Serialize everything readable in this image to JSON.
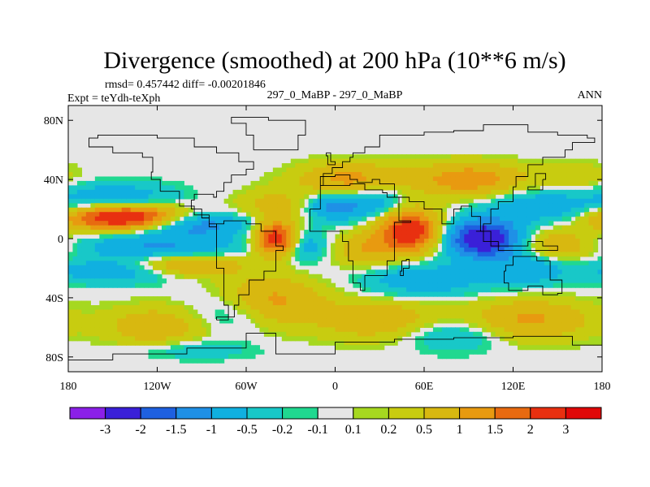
{
  "chart_data": {
    "type": "heatmap",
    "title": "Divergence (smoothed) at 200 hPa (10**6 m/s)",
    "stats_line": "rmsd= 0.457442 diff= -0.00201846",
    "experiment_label": "Expt = teYdh-teXph",
    "comparison_label": "297_0_MaBP - 297_0_MaBP",
    "season_label": "ANN",
    "x_range": [
      -180,
      180
    ],
    "y_range": [
      -90,
      90
    ],
    "x_ticks": [
      {
        "value": -180,
        "label": "180"
      },
      {
        "value": -120,
        "label": "120W"
      },
      {
        "value": -60,
        "label": "60W"
      },
      {
        "value": 0,
        "label": "0"
      },
      {
        "value": 60,
        "label": "60E"
      },
      {
        "value": 120,
        "label": "120E"
      },
      {
        "value": 180,
        "label": "180"
      }
    ],
    "y_ticks": [
      {
        "value": 80,
        "label": "80N"
      },
      {
        "value": 40,
        "label": "40N"
      },
      {
        "value": 0,
        "label": "0"
      },
      {
        "value": -40,
        "label": "40S"
      },
      {
        "value": -80,
        "label": "80S"
      }
    ],
    "levels": [
      -3,
      -2,
      -1.5,
      -1,
      -0.5,
      -0.2,
      -0.1,
      0.1,
      0.2,
      0.5,
      1,
      1.5,
      2,
      3
    ],
    "level_labels": [
      "-3",
      "-2",
      "-1.5",
      "-1",
      "-0.5",
      "-0.2",
      "-0.1",
      "0.1",
      "0.2",
      "0.5",
      "1",
      "1.5",
      "2",
      "3"
    ],
    "colors": [
      "#8b20e8",
      "#3a20d8",
      "#1e60e0",
      "#1f90e6",
      "#10b0e0",
      "#18c8c8",
      "#20d890",
      "#e6e6e6",
      "#a6d820",
      "#c8cc10",
      "#d8b810",
      "#e89a10",
      "#e86a10",
      "#e83010",
      "#e00808"
    ],
    "sources": [
      {
        "lon": -140,
        "lat": 14,
        "amp": 3.2,
        "sx": 28,
        "sy": 6
      },
      {
        "lon": -100,
        "lat": 10,
        "amp": -1.6,
        "sx": 30,
        "sy": 6
      },
      {
        "lon": -150,
        "lat": 28,
        "amp": -0.9,
        "sx": 30,
        "sy": 7
      },
      {
        "lon": -120,
        "lat": -5,
        "amp": -1.0,
        "sx": 40,
        "sy": 6
      },
      {
        "lon": -100,
        "lat": -18,
        "amp": 1.2,
        "sx": 25,
        "sy": 5
      },
      {
        "lon": -150,
        "lat": -22,
        "amp": -0.9,
        "sx": 30,
        "sy": 6
      },
      {
        "lon": -40,
        "lat": 0,
        "amp": 2.6,
        "sx": 10,
        "sy": 8
      },
      {
        "lon": -20,
        "lat": -5,
        "amp": -0.8,
        "sx": 10,
        "sy": 8
      },
      {
        "lon": -45,
        "lat": -42,
        "amp": 1.2,
        "sx": 25,
        "sy": 12
      },
      {
        "lon": -70,
        "lat": -50,
        "amp": -0.7,
        "sx": 20,
        "sy": 10
      },
      {
        "lon": 0,
        "lat": 22,
        "amp": -1.3,
        "sx": 15,
        "sy": 7
      },
      {
        "lon": -40,
        "lat": 22,
        "amp": 0.7,
        "sx": 20,
        "sy": 8
      },
      {
        "lon": 10,
        "lat": 40,
        "amp": 1.2,
        "sx": 25,
        "sy": 8
      },
      {
        "lon": 50,
        "lat": 5,
        "amp": 2.6,
        "sx": 15,
        "sy": 10
      },
      {
        "lon": 30,
        "lat": 25,
        "amp": -0.8,
        "sx": 12,
        "sy": 8
      },
      {
        "lon": 20,
        "lat": -8,
        "amp": 0.9,
        "sx": 15,
        "sy": 8
      },
      {
        "lon": 60,
        "lat": -28,
        "amp": -0.9,
        "sx": 30,
        "sy": 8
      },
      {
        "lon": 100,
        "lat": 0,
        "amp": -2.8,
        "sx": 18,
        "sy": 9
      },
      {
        "lon": 90,
        "lat": 40,
        "amp": 1.4,
        "sx": 25,
        "sy": 8
      },
      {
        "lon": 140,
        "lat": 22,
        "amp": -0.9,
        "sx": 25,
        "sy": 8
      },
      {
        "lon": 150,
        "lat": -5,
        "amp": 1.0,
        "sx": 20,
        "sy": 8
      },
      {
        "lon": 130,
        "lat": -20,
        "amp": -0.9,
        "sx": 20,
        "sy": 8
      },
      {
        "lon": 130,
        "lat": -55,
        "amp": 1.1,
        "sx": 30,
        "sy": 10
      },
      {
        "lon": 30,
        "lat": -55,
        "amp": 0.9,
        "sx": 30,
        "sy": 10
      },
      {
        "lon": -120,
        "lat": -60,
        "amp": 0.9,
        "sx": 25,
        "sy": 10
      },
      {
        "lon": -100,
        "lat": -75,
        "amp": -0.5,
        "sx": 30,
        "sy": 5
      },
      {
        "lon": 80,
        "lat": -65,
        "amp": -0.7,
        "sx": 25,
        "sy": 8
      },
      {
        "lon": 160,
        "lat": 40,
        "amp": 0.5,
        "sx": 20,
        "sy": 8
      }
    ]
  }
}
